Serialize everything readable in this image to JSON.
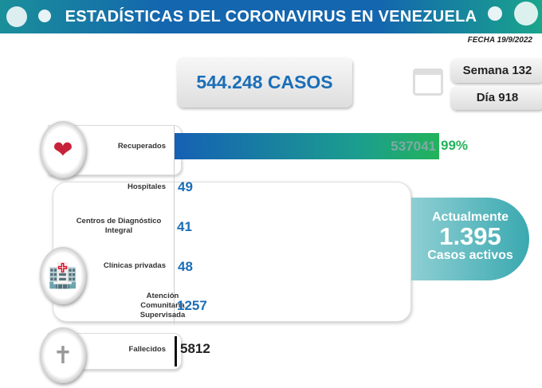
{
  "header": {
    "title": "ESTADÍSTICAS DEL CORONAVIRUS EN VENEZUELA",
    "fecha": "FECHA 19/9/2022"
  },
  "summary": {
    "casos": "544.248 CASOS",
    "semana": "Semana 132",
    "dia": "Día 918"
  },
  "recuperados": {
    "label": "Recuperados",
    "value": "537041",
    "percent": "99%",
    "icon": "heart-pulse-icon"
  },
  "activos": {
    "items": [
      {
        "label": "Hospitales",
        "value": "49"
      },
      {
        "label": "Centros de Diagnóstico Integral",
        "value": "41"
      },
      {
        "label": "Clínicas privadas",
        "value": "48"
      },
      {
        "label": "Atención Comunitaria Supervisada",
        "value": "1257"
      }
    ],
    "bubble": {
      "line1": "Actualmente",
      "number": "1.395",
      "line3": "Casos activos"
    },
    "icon": "hospital-icon"
  },
  "fallecidos": {
    "label": "Fallecidos",
    "value": "5812",
    "icon": "tombstone-icon"
  },
  "colors": {
    "header_blue": "#1466ae",
    "header_green": "#1aa58c",
    "value_blue": "#1a6eb8",
    "percent_green": "#22b35a",
    "bubble_teal": "#3aa9b0"
  }
}
